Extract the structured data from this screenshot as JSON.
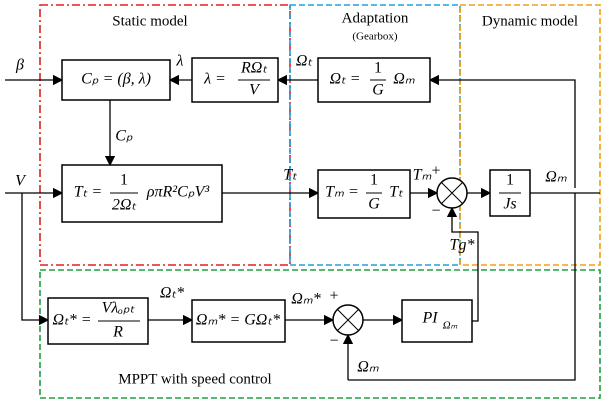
{
  "regions": {
    "static": "Static model",
    "adaptation": "Adaptation",
    "gearbox": "(Gearbox)",
    "dynamic": "Dynamic model",
    "mppt": "MPPT with speed control"
  },
  "blocks": {
    "cp": {
      "text": "Cₚ = (β, λ)"
    },
    "lambda": {
      "lhs": "λ =",
      "num": "RΩₜ",
      "den": "V"
    },
    "omega_t": {
      "lhs": "Ωₜ =",
      "num": "1",
      "den": "G",
      "rhs": "Ωₘ"
    },
    "torque_t": {
      "lhs": "Tₜ =",
      "num": "1",
      "den": "2Ωₜ",
      "rhs": "ρπR²CₚV³"
    },
    "torque_m": {
      "lhs": "Tₘ =",
      "num": "1",
      "den": "G",
      "rhs": "Tₜ"
    },
    "dynamics": {
      "num": "1",
      "den": "Js"
    },
    "omega_t_ref": {
      "lhs": "Ωₜ* =",
      "num": "Vλₒₚₜ",
      "den": "R"
    },
    "omega_m_ref": {
      "text": "Ωₘ* = GΩₜ*"
    },
    "pi": {
      "main": "PI",
      "sub": "Ωₘ"
    }
  },
  "labels": {
    "beta": "β",
    "lambda": "λ",
    "omega_t": "Ωₜ",
    "cp": "Cₚ",
    "v": "V",
    "t_t": "Tₜ",
    "t_m": "Tₘ",
    "plus": "+",
    "minus": "−",
    "t_g": "Tg*",
    "omega_m": "Ωₘ",
    "omega_t_ref": "Ωₜ*",
    "omega_m_ref": "Ωₘ*",
    "plus2": "+",
    "minus2": "−",
    "feedback": "Ωₘ"
  }
}
